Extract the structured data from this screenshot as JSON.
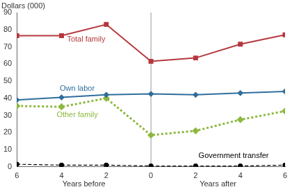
{
  "chart_data": {
    "type": "line",
    "y_label": "Dollars (000)",
    "x_label": [
      "Years before",
      "Years after"
    ],
    "categories": [
      "6",
      "4",
      "2",
      "0",
      "2",
      "4",
      "6"
    ],
    "reference_line": {
      "x": "0"
    },
    "series": [
      {
        "name": "Total family",
        "color": "#b5373c",
        "marker": "square",
        "line_style": "solid",
        "values": [
          76.5,
          76.5,
          83,
          61.5,
          63.5,
          71.5,
          77
        ]
      },
      {
        "name": "Own labor",
        "color": "#2f6e9c",
        "marker": "diamond",
        "line_style": "solid",
        "values": [
          39,
          40.5,
          42,
          42.5,
          42,
          43,
          44
        ]
      },
      {
        "name": "Other family",
        "color": "#8db83e",
        "marker": "diamond",
        "line_style": "dotted",
        "values": [
          35.5,
          35,
          40,
          18.5,
          21,
          27.5,
          32.5
        ]
      },
      {
        "name": "Government transfer",
        "color": "#000000",
        "marker": "circle",
        "line_style": "dashed",
        "values": [
          1.5,
          1,
          1,
          0.5,
          0.5,
          0.5,
          1
        ]
      }
    ],
    "ylim": [
      0,
      90
    ],
    "yticks": [
      0,
      10,
      20,
      30,
      40,
      50,
      60,
      70,
      80,
      90
    ],
    "grid": false,
    "legend": "none"
  }
}
